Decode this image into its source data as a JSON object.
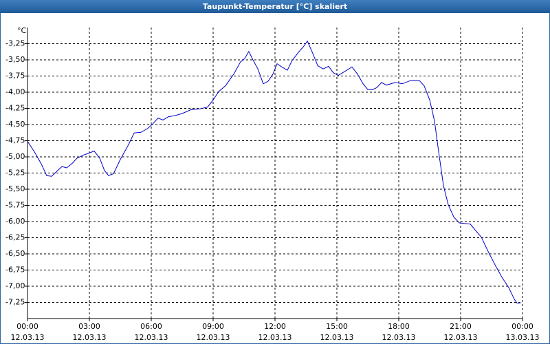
{
  "chart_data": {
    "type": "line",
    "title": "Taupunkt-Temperatur [°C] skaliert",
    "y_unit": "°C",
    "x": [
      0,
      0.33,
      0.67,
      0.93,
      1.17,
      1.4,
      1.67,
      1.9,
      2.17,
      2.4,
      2.73,
      3,
      3.23,
      3.5,
      3.73,
      3.93,
      4.17,
      4.5,
      4.9,
      5.17,
      5.5,
      5.83,
      6.07,
      6.33,
      6.57,
      6.83,
      7.17,
      7.5,
      7.93,
      8.33,
      8.73,
      9,
      9.27,
      9.6,
      10,
      10.33,
      10.53,
      10.73,
      10.93,
      11.17,
      11.43,
      11.67,
      11.9,
      12.1,
      12.33,
      12.6,
      12.83,
      13.17,
      13.37,
      13.57,
      13.83,
      14.07,
      14.33,
      14.6,
      14.83,
      15.07,
      15.33,
      15.73,
      16,
      16.27,
      16.5,
      16.73,
      16.93,
      17.17,
      17.4,
      17.83,
      18.17,
      18.57,
      19,
      19.23,
      19.5,
      19.73,
      19.93,
      20.17,
      20.4,
      20.67,
      20.93,
      21.2,
      21.47,
      21.73,
      22,
      22.33,
      22.67,
      23,
      23.33,
      23.6,
      23.73,
      23.9
    ],
    "series": [
      {
        "name": "Taupunkt-Temperatur",
        "color": "#0000cc",
        "values": [
          -4.76,
          -4.92,
          -5.11,
          -5.29,
          -5.3,
          -5.23,
          -5.15,
          -5.17,
          -5.1,
          -5.02,
          -4.97,
          -4.94,
          -4.91,
          -5.02,
          -5.21,
          -5.29,
          -5.26,
          -5.04,
          -4.81,
          -4.63,
          -4.62,
          -4.56,
          -4.49,
          -4.4,
          -4.43,
          -4.38,
          -4.36,
          -4.33,
          -4.27,
          -4.26,
          -4.23,
          -4.12,
          -3.99,
          -3.9,
          -3.72,
          -3.53,
          -3.48,
          -3.37,
          -3.5,
          -3.64,
          -3.87,
          -3.83,
          -3.72,
          -3.56,
          -3.61,
          -3.66,
          -3.51,
          -3.37,
          -3.3,
          -3.21,
          -3.4,
          -3.59,
          -3.64,
          -3.6,
          -3.7,
          -3.74,
          -3.69,
          -3.61,
          -3.72,
          -3.87,
          -3.96,
          -3.96,
          -3.93,
          -3.85,
          -3.89,
          -3.85,
          -3.87,
          -3.82,
          -3.82,
          -3.9,
          -4.12,
          -4.44,
          -4.91,
          -5.45,
          -5.74,
          -5.93,
          -6.02,
          -6.03,
          -6.04,
          -6.14,
          -6.24,
          -6.46,
          -6.67,
          -6.86,
          -7.02,
          -7.2,
          -7.26,
          -7.26
        ]
      }
    ],
    "xlim": [
      0,
      24
    ],
    "xticks": [
      {
        "value": 0,
        "label": "00:00",
        "date": "12.03.13"
      },
      {
        "value": 3,
        "label": "03:00",
        "date": "12.03.13"
      },
      {
        "value": 6,
        "label": "06:00",
        "date": "12.03.13"
      },
      {
        "value": 9,
        "label": "09:00",
        "date": "12.03.13"
      },
      {
        "value": 12,
        "label": "12:00",
        "date": "12.03.13"
      },
      {
        "value": 15,
        "label": "15:00",
        "date": "12.03.13"
      },
      {
        "value": 18,
        "label": "18:00",
        "date": "12.03.13"
      },
      {
        "value": 21,
        "label": "21:00",
        "date": "12.03.13"
      },
      {
        "value": 24,
        "label": "00:00",
        "date": "13.03.13"
      }
    ],
    "ylim": [
      -7.5,
      -3.0
    ],
    "yticks": [
      {
        "value": -3.25,
        "label": "-3,25"
      },
      {
        "value": -3.5,
        "label": "-3,50"
      },
      {
        "value": -3.75,
        "label": "-3,75"
      },
      {
        "value": -4.0,
        "label": "-4,00"
      },
      {
        "value": -4.25,
        "label": "-4,25"
      },
      {
        "value": -4.5,
        "label": "-4,50"
      },
      {
        "value": -4.75,
        "label": "-4,75"
      },
      {
        "value": -5.0,
        "label": "-5,00"
      },
      {
        "value": -5.25,
        "label": "-5,25"
      },
      {
        "value": -5.5,
        "label": "-5,50"
      },
      {
        "value": -5.75,
        "label": "-5,75"
      },
      {
        "value": -6.0,
        "label": "-6,00"
      },
      {
        "value": -6.25,
        "label": "-6,25"
      },
      {
        "value": -6.5,
        "label": "-6,50"
      },
      {
        "value": -6.75,
        "label": "-6,75"
      },
      {
        "value": -7.0,
        "label": "-7,00"
      },
      {
        "value": -7.25,
        "label": "-7,25"
      }
    ],
    "grid": true
  }
}
